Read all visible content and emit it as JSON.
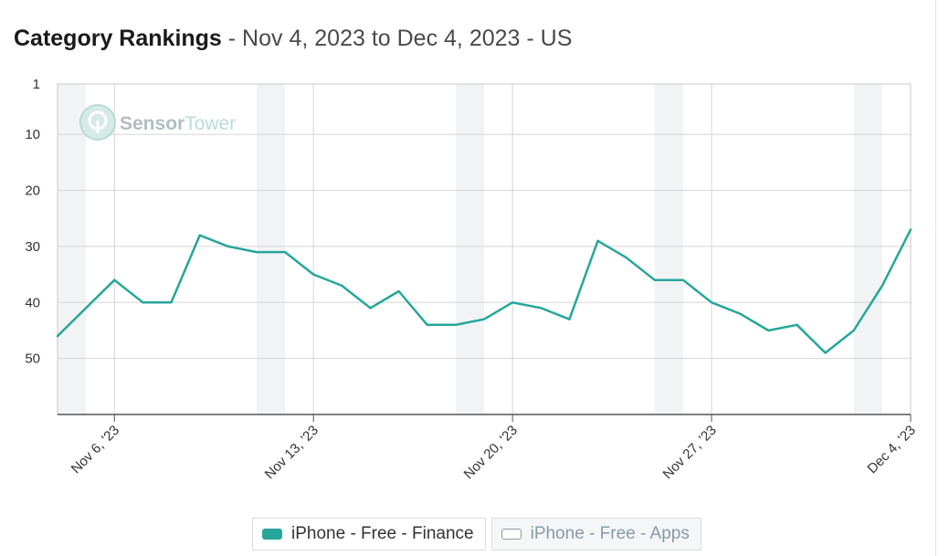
{
  "header": {
    "title": "Category Rankings",
    "subtitle": " - Nov 4, 2023 to Dec 4, 2023 - US"
  },
  "watermark": {
    "icon": "sensortower-logo-icon",
    "part1": "Sensor",
    "part2": "Tower"
  },
  "chart_data": {
    "type": "line",
    "x_start": "2023-11-04",
    "x_end": "2023-12-04",
    "y_reversed": true,
    "ylim": [
      1,
      60
    ],
    "yticks": [
      1,
      10,
      20,
      30,
      40,
      50
    ],
    "grid": true,
    "weekend_shading": [
      [
        "2023-11-04",
        "2023-11-05"
      ],
      [
        "2023-11-11",
        "2023-11-12"
      ],
      [
        "2023-11-18",
        "2023-11-19"
      ],
      [
        "2023-11-25",
        "2023-11-26"
      ],
      [
        "2023-12-02",
        "2023-12-03"
      ]
    ],
    "xticks": [
      {
        "date": "2023-11-06",
        "label": "Nov 6, '23"
      },
      {
        "date": "2023-11-13",
        "label": "Nov 13, '23"
      },
      {
        "date": "2023-11-20",
        "label": "Nov 20, '23"
      },
      {
        "date": "2023-11-27",
        "label": "Nov 27, '23"
      },
      {
        "date": "2023-12-04",
        "label": "Dec 4, '23"
      }
    ],
    "series": [
      {
        "name": "iPhone - Free - Finance",
        "color": "#26a69a",
        "x": [
          "2023-11-04",
          "2023-11-05",
          "2023-11-06",
          "2023-11-07",
          "2023-11-08",
          "2023-11-09",
          "2023-11-10",
          "2023-11-11",
          "2023-11-12",
          "2023-11-13",
          "2023-11-14",
          "2023-11-15",
          "2023-11-16",
          "2023-11-17",
          "2023-11-18",
          "2023-11-19",
          "2023-11-20",
          "2023-11-21",
          "2023-11-22",
          "2023-11-23",
          "2023-11-24",
          "2023-11-25",
          "2023-11-26",
          "2023-11-27",
          "2023-11-28",
          "2023-11-29",
          "2023-11-30",
          "2023-12-01",
          "2023-12-02",
          "2023-12-03",
          "2023-12-04"
        ],
        "values": [
          46,
          41,
          36,
          40,
          40,
          28,
          30,
          31,
          31,
          35,
          37,
          41,
          38,
          44,
          44,
          43,
          40,
          41,
          43,
          29,
          32,
          36,
          36,
          40,
          42,
          45,
          44,
          49,
          45,
          37,
          27
        ]
      }
    ],
    "legend": [
      {
        "label": "iPhone - Free - Finance",
        "color": "#26a69a",
        "active": true
      },
      {
        "label": "iPhone - Free - Apps",
        "color": "#ffffff",
        "active": false
      }
    ],
    "legend_position": "bottom-center"
  }
}
